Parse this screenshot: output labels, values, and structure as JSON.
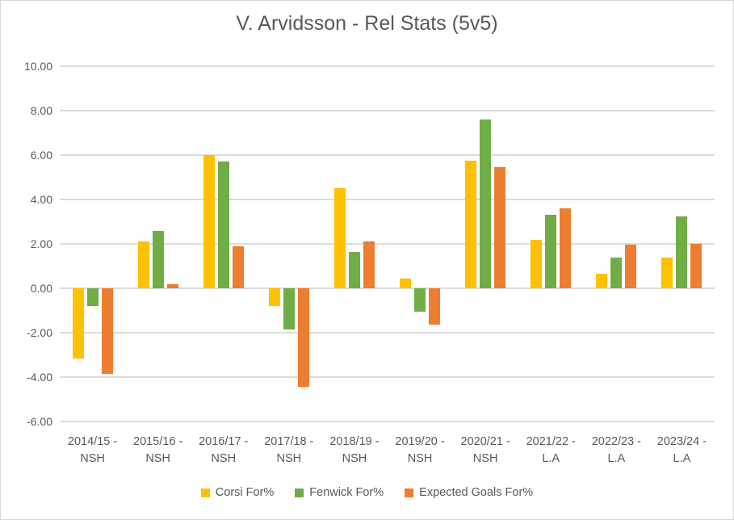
{
  "chart": {
    "title": "V. Arvidsson - Rel Stats (5v5)"
  },
  "chart_data": {
    "type": "bar",
    "title": "V. Arvidsson - Rel Stats (5v5)",
    "categories": [
      "2014/15 - NSH",
      "2015/16 - NSH",
      "2016/17 - NSH",
      "2017/18 - NSH",
      "2018/19 - NSH",
      "2019/20 - NSH",
      "2020/21 - NSH",
      "2021/22 - L.A",
      "2022/23 - L.A",
      "2023/24 - L.A"
    ],
    "series": [
      {
        "name": "Corsi For%",
        "color": "#FFC000",
        "values": [
          -3.15,
          2.1,
          6.0,
          -0.8,
          4.5,
          0.45,
          5.75,
          2.2,
          0.65,
          1.4
        ]
      },
      {
        "name": "Fenwick For%",
        "color": "#70AD47",
        "values": [
          -0.8,
          2.6,
          5.7,
          -1.85,
          1.65,
          -1.05,
          7.6,
          3.3,
          1.4,
          3.25
        ]
      },
      {
        "name": "Expected Goals For%",
        "color": "#ED7D31",
        "values": [
          -3.85,
          0.2,
          1.9,
          -4.45,
          2.1,
          -1.65,
          5.45,
          3.6,
          1.95,
          2.0
        ]
      }
    ],
    "ylim": [
      -6,
      10
    ],
    "yticks": [
      10,
      8,
      6,
      4,
      2,
      0,
      -2,
      -4,
      -6
    ],
    "ytick_labels": [
      "10.00",
      "8.00",
      "6.00",
      "4.00",
      "2.00",
      "0.00",
      "-2.00",
      "-4.00",
      "-6.00"
    ],
    "xlabel": "",
    "ylabel": "",
    "grid": true,
    "legend_position": "bottom"
  },
  "colors": {
    "background": "#FFFFFF",
    "border": "#D7D7D7",
    "gridline": "#DCDCDC",
    "axis_text": "#595959",
    "title_text": "#595959"
  }
}
